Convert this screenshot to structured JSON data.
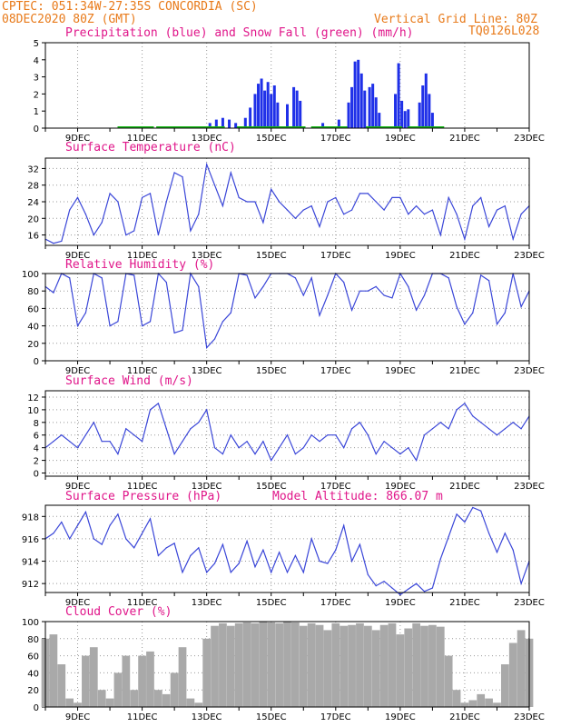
{
  "header": {
    "line1_left": "CPTEC:  051:34W-27:35S  CONCORDIA (SC)",
    "line2_left": "08DEC2020 80Z (GMT)",
    "line2_right": "Vertical Grid Line: 80Z",
    "line3_right": "TQ0126L028"
  },
  "colors": {
    "header": "#e87a1a",
    "title": "#e0168a",
    "line": "#3a46d8",
    "precip": "#1f30e8",
    "snow": "#14b814",
    "cloud": "#a9a9a9",
    "grid": "#999999"
  },
  "x_ticks": [
    "9DEC",
    "11DEC",
    "13DEC",
    "15DEC",
    "17DEC",
    "19DEC",
    "21DEC",
    "23DEC"
  ],
  "chart_data": [
    {
      "type": "bar",
      "title": "Precipitation (blue) and Snow Fall (green) (mm/h)",
      "ylim": [
        0,
        5
      ],
      "yticks": [
        "0",
        "1",
        "2",
        "3",
        "4",
        "5"
      ],
      "series": [
        {
          "name": "Precipitation",
          "values": [
            [
              13.1,
              0.3
            ],
            [
              13.3,
              0.5
            ],
            [
              13.5,
              0.6
            ],
            [
              13.7,
              0.5
            ],
            [
              13.9,
              0.3
            ],
            [
              14.2,
              0.6
            ],
            [
              14.35,
              1.2
            ],
            [
              14.5,
              2.0
            ],
            [
              14.6,
              2.6
            ],
            [
              14.7,
              2.9
            ],
            [
              14.8,
              2.2
            ],
            [
              14.9,
              2.7
            ],
            [
              15.0,
              2.0
            ],
            [
              15.1,
              2.5
            ],
            [
              15.2,
              1.5
            ],
            [
              15.5,
              1.4
            ],
            [
              15.7,
              2.4
            ],
            [
              15.8,
              2.2
            ],
            [
              15.9,
              1.6
            ],
            [
              16.6,
              0.3
            ],
            [
              17.1,
              0.5
            ],
            [
              17.4,
              1.5
            ],
            [
              17.5,
              2.4
            ],
            [
              17.6,
              3.9
            ],
            [
              17.7,
              4.0
            ],
            [
              17.8,
              3.2
            ],
            [
              17.9,
              2.2
            ],
            [
              18.05,
              2.4
            ],
            [
              18.15,
              2.6
            ],
            [
              18.25,
              1.8
            ],
            [
              18.35,
              0.9
            ],
            [
              18.85,
              2.0
            ],
            [
              18.95,
              3.8
            ],
            [
              19.05,
              1.6
            ],
            [
              19.15,
              1.0
            ],
            [
              19.25,
              1.1
            ],
            [
              19.6,
              1.5
            ],
            [
              19.7,
              2.5
            ],
            [
              19.8,
              3.2
            ],
            [
              19.9,
              2.0
            ],
            [
              20.0,
              0.9
            ]
          ]
        },
        {
          "name": "Snow Fall",
          "values": [
            [
              10.8,
              0.05
            ],
            [
              12.0,
              0.05
            ],
            [
              13.0,
              0.05
            ],
            [
              14.5,
              0.1
            ],
            [
              15.5,
              0.05
            ],
            [
              16.8,
              0.05
            ],
            [
              18.5,
              0.05
            ],
            [
              19.8,
              0.05
            ]
          ]
        }
      ]
    },
    {
      "type": "line",
      "title": "Surface Temperature (nC)",
      "ylim": [
        13.5,
        34.5
      ],
      "yticks": [
        "16",
        "20",
        "24",
        "28",
        "32"
      ],
      "ytick_values": [
        16,
        20,
        24,
        28,
        32
      ],
      "x": [
        8.0,
        8.25,
        8.5,
        8.75,
        9.0,
        9.25,
        9.5,
        9.75,
        10.0,
        10.25,
        10.5,
        10.75,
        11.0,
        11.25,
        11.5,
        11.75,
        12.0,
        12.25,
        12.5,
        12.75,
        13.0,
        13.25,
        13.5,
        13.75,
        14.0,
        14.25,
        14.5,
        14.75,
        15.0,
        15.25,
        15.5,
        15.75,
        16.0,
        16.25,
        16.5,
        16.75,
        17.0,
        17.25,
        17.5,
        17.75,
        18.0,
        18.25,
        18.5,
        18.75,
        19.0,
        19.25,
        19.5,
        19.75,
        20.0,
        20.25,
        20.5,
        20.75,
        21.0,
        21.25,
        21.5,
        21.75,
        22.0,
        22.25,
        22.5,
        22.75,
        23.0
      ],
      "values": [
        15,
        14,
        14.5,
        22,
        25,
        21,
        16,
        19,
        26,
        24,
        16,
        17,
        25,
        26,
        16,
        24,
        31,
        30,
        17,
        21,
        33,
        28,
        23,
        31,
        25,
        24,
        24,
        19,
        27,
        24,
        22,
        20,
        22,
        23,
        18,
        24,
        25,
        21,
        22,
        26,
        26,
        24,
        22,
        25,
        25,
        21,
        23,
        21,
        22,
        16,
        25,
        21,
        15,
        23,
        25,
        18,
        22,
        23,
        15,
        21,
        23
      ]
    },
    {
      "type": "line",
      "title": "Relative Humidity (%)",
      "ylim": [
        0,
        100
      ],
      "yticks": [
        "0",
        "20",
        "40",
        "60",
        "80",
        "100"
      ],
      "ytick_values": [
        0,
        20,
        40,
        60,
        80,
        100
      ],
      "x": [
        8.0,
        8.25,
        8.5,
        8.75,
        9.0,
        9.25,
        9.5,
        9.75,
        10.0,
        10.25,
        10.5,
        10.75,
        11.0,
        11.25,
        11.5,
        11.75,
        12.0,
        12.25,
        12.5,
        12.75,
        13.0,
        13.25,
        13.5,
        13.75,
        14.0,
        14.25,
        14.5,
        14.75,
        15.0,
        15.25,
        15.5,
        15.75,
        16.0,
        16.25,
        16.5,
        16.75,
        17.0,
        17.25,
        17.5,
        17.75,
        18.0,
        18.25,
        18.5,
        18.75,
        19.0,
        19.25,
        19.5,
        19.75,
        20.0,
        20.25,
        20.5,
        20.75,
        21.0,
        21.25,
        21.5,
        21.75,
        22.0,
        22.25,
        22.5,
        22.75,
        23.0
      ],
      "values": [
        85,
        78,
        100,
        95,
        40,
        55,
        100,
        95,
        40,
        45,
        100,
        98,
        40,
        45,
        100,
        90,
        32,
        35,
        100,
        85,
        15,
        25,
        45,
        55,
        100,
        98,
        72,
        85,
        100,
        100,
        100,
        95,
        75,
        95,
        52,
        75,
        100,
        90,
        58,
        80,
        80,
        85,
        75,
        72,
        100,
        85,
        58,
        75,
        100,
        100,
        95,
        62,
        42,
        55,
        98,
        92,
        42,
        55,
        100,
        62,
        80
      ]
    },
    {
      "type": "line",
      "title": "Surface Wind (m/s)",
      "ylim": [
        -0.5,
        13
      ],
      "yticks": [
        "0",
        "2",
        "4",
        "6",
        "8",
        "10",
        "12"
      ],
      "ytick_values": [
        0,
        2,
        4,
        6,
        8,
        10,
        12
      ],
      "x": [
        8.0,
        8.25,
        8.5,
        8.75,
        9.0,
        9.25,
        9.5,
        9.75,
        10.0,
        10.25,
        10.5,
        10.75,
        11.0,
        11.25,
        11.5,
        11.75,
        12.0,
        12.25,
        12.5,
        12.75,
        13.0,
        13.25,
        13.5,
        13.75,
        14.0,
        14.25,
        14.5,
        14.75,
        15.0,
        15.25,
        15.5,
        15.75,
        16.0,
        16.25,
        16.5,
        16.75,
        17.0,
        17.25,
        17.5,
        17.75,
        18.0,
        18.25,
        18.5,
        18.75,
        19.0,
        19.25,
        19.5,
        19.75,
        20.0,
        20.25,
        20.5,
        20.75,
        21.0,
        21.25,
        21.5,
        21.75,
        22.0,
        22.25,
        22.5,
        22.75,
        23.0
      ],
      "values": [
        4,
        5,
        6,
        5,
        4,
        6,
        8,
        5,
        5,
        3,
        7,
        6,
        5,
        10,
        11,
        7,
        3,
        5,
        7,
        8,
        10,
        4,
        3,
        6,
        4,
        5,
        3,
        5,
        2,
        4,
        6,
        3,
        4,
        6,
        5,
        6,
        6,
        4,
        7,
        8,
        6,
        3,
        5,
        4,
        3,
        4,
        2,
        6,
        7,
        8,
        7,
        10,
        11,
        9,
        8,
        7,
        6,
        7,
        8,
        7,
        9
      ]
    },
    {
      "type": "line",
      "title": "Surface Pressure (hPa)",
      "annotation": "Model Altitude: 866.07 m",
      "ylim": [
        911.2,
        919
      ],
      "yticks": [
        "912",
        "914",
        "916",
        "918"
      ],
      "ytick_values": [
        912,
        914,
        916,
        918
      ],
      "x": [
        8.0,
        8.25,
        8.5,
        8.75,
        9.0,
        9.25,
        9.5,
        9.75,
        10.0,
        10.25,
        10.5,
        10.75,
        11.0,
        11.25,
        11.5,
        11.75,
        12.0,
        12.25,
        12.5,
        12.75,
        13.0,
        13.25,
        13.5,
        13.75,
        14.0,
        14.25,
        14.5,
        14.75,
        15.0,
        15.25,
        15.5,
        15.75,
        16.0,
        16.25,
        16.5,
        16.75,
        17.0,
        17.25,
        17.5,
        17.75,
        18.0,
        18.25,
        18.5,
        18.75,
        19.0,
        19.25,
        19.5,
        19.75,
        20.0,
        20.25,
        20.5,
        20.75,
        21.0,
        21.25,
        21.5,
        21.75,
        22.0,
        22.25,
        22.5,
        22.75,
        23.0
      ],
      "values": [
        916,
        916.5,
        917.5,
        916,
        917.2,
        918.4,
        916,
        915.5,
        917.2,
        918.2,
        916,
        915.2,
        916.5,
        917.8,
        914.5,
        915.2,
        915.6,
        913,
        914.5,
        915.2,
        913,
        913.8,
        915.5,
        913,
        913.8,
        915.8,
        913.5,
        915,
        913,
        914.8,
        913,
        914.5,
        913,
        916,
        914,
        913.8,
        915,
        917.2,
        914,
        915.5,
        912.8,
        911.8,
        912.2,
        911.6,
        911,
        911.5,
        912,
        911.3,
        911.6,
        914.2,
        916.2,
        918.2,
        917.5,
        918.8,
        918.5,
        916.5,
        914.8,
        916.5,
        915,
        912,
        914
      ]
    },
    {
      "type": "area",
      "title": "Cloud Cover (%)",
      "ylim": [
        0,
        100
      ],
      "yticks": [
        "0",
        "20",
        "40",
        "60",
        "80",
        "100"
      ],
      "ytick_values": [
        0,
        20,
        40,
        60,
        80,
        100
      ],
      "x": [
        8.0,
        8.25,
        8.5,
        8.75,
        9.0,
        9.25,
        9.5,
        9.75,
        10.0,
        10.25,
        10.5,
        10.75,
        11.0,
        11.25,
        11.5,
        11.75,
        12.0,
        12.25,
        12.5,
        12.75,
        13.0,
        13.25,
        13.5,
        13.75,
        14.0,
        14.25,
        14.5,
        14.75,
        15.0,
        15.25,
        15.5,
        15.75,
        16.0,
        16.25,
        16.5,
        16.75,
        17.0,
        17.25,
        17.5,
        17.75,
        18.0,
        18.25,
        18.5,
        18.75,
        19.0,
        19.25,
        19.5,
        19.75,
        20.0,
        20.25,
        20.5,
        20.75,
        21.0,
        21.25,
        21.5,
        21.75,
        22.0,
        22.25,
        22.5,
        22.75,
        23.0
      ],
      "values": [
        80,
        85,
        50,
        10,
        5,
        60,
        70,
        20,
        10,
        40,
        60,
        20,
        60,
        65,
        20,
        15,
        40,
        70,
        10,
        5,
        80,
        95,
        98,
        95,
        98,
        99,
        98,
        100,
        99,
        98,
        100,
        99,
        95,
        98,
        96,
        90,
        98,
        95,
        96,
        98,
        95,
        90,
        96,
        98,
        85,
        92,
        98,
        95,
        96,
        94,
        60,
        20,
        5,
        8,
        15,
        10,
        5,
        50,
        75,
        90,
        80
      ]
    }
  ]
}
